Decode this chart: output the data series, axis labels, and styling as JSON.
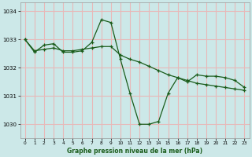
{
  "title": "Graphe pression niveau de la mer (hPa)",
  "background_color": "#cce8e8",
  "grid_color": "#e8b8b8",
  "line_color": "#1a5c1a",
  "xlim": [
    -0.5,
    23.5
  ],
  "ylim": [
    1029.5,
    1034.3
  ],
  "yticks": [
    1030,
    1031,
    1032,
    1033,
    1034
  ],
  "xticks": [
    0,
    1,
    2,
    3,
    4,
    5,
    6,
    7,
    8,
    9,
    10,
    11,
    12,
    13,
    14,
    15,
    16,
    17,
    18,
    19,
    20,
    21,
    22,
    23
  ],
  "series1_x": [
    0,
    1,
    2,
    3,
    4,
    5,
    6,
    7,
    8,
    9,
    10,
    11,
    12,
    13,
    14,
    15,
    16,
    17,
    18,
    19,
    20,
    21,
    22,
    23
  ],
  "series1_y": [
    1033.0,
    1032.55,
    1032.8,
    1032.85,
    1032.55,
    1032.55,
    1032.6,
    1032.9,
    1033.7,
    1033.6,
    1032.3,
    1031.1,
    1030.0,
    1030.0,
    1030.1,
    1031.1,
    1031.65,
    1031.5,
    1031.75,
    1031.7,
    1031.7,
    1031.65,
    1031.55,
    1031.3
  ],
  "series2_x": [
    0,
    1,
    2,
    3,
    4,
    5,
    6,
    7,
    8,
    9,
    10,
    11,
    12,
    13,
    14,
    15,
    16,
    17,
    18,
    19,
    20,
    21,
    22,
    23
  ],
  "series2_y": [
    1033.0,
    1032.6,
    1032.65,
    1032.7,
    1032.6,
    1032.6,
    1032.65,
    1032.7,
    1032.75,
    1032.75,
    1032.45,
    1032.3,
    1032.2,
    1032.05,
    1031.9,
    1031.75,
    1031.65,
    1031.55,
    1031.45,
    1031.4,
    1031.35,
    1031.3,
    1031.25,
    1031.2
  ]
}
